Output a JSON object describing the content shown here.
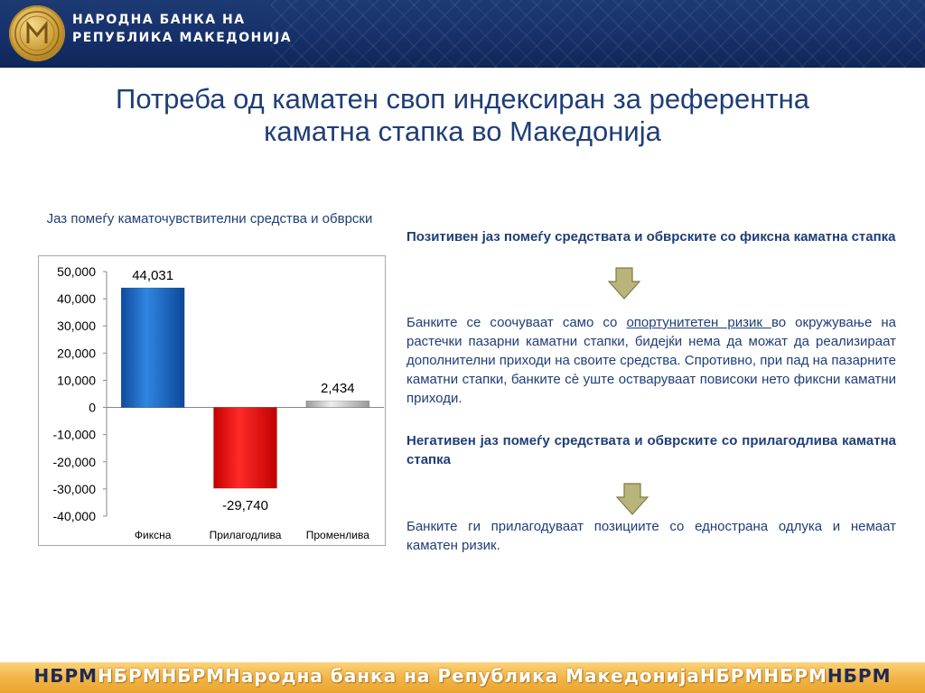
{
  "header": {
    "bank_name_line1": "НАРОДНА БАНКА НА",
    "bank_name_line2": "РЕПУБЛИКА МАКЕДОНИЈА",
    "logo_icon": "nbrm-seal-icon"
  },
  "title": {
    "line1": "Потреба од каматен своп индексиран за референтна",
    "line2": "каматна стапка во Македонија"
  },
  "chart_title": "Јаз помеѓу каматочувствителни средства и обврски",
  "chart_data": {
    "type": "bar",
    "title": "Јаз помеѓу каматочувствителни средства и обврски",
    "categories": [
      "Фиксна",
      "Прилагодлива",
      "Променлива"
    ],
    "values": [
      44031,
      -29740,
      2434
    ],
    "value_labels": [
      "44,031",
      "-29,740",
      "2,434"
    ],
    "colors": [
      "#1565c0",
      "#e31414",
      "#c8c8c8"
    ],
    "ylim": [
      -40000,
      50000
    ],
    "yticks": [
      50000,
      40000,
      30000,
      20000,
      10000,
      0,
      -10000,
      -20000,
      -30000,
      -40000
    ],
    "ytick_labels": [
      "50,000",
      "40,000",
      "30,000",
      "20,000",
      "10,000",
      "0",
      "-10,000",
      "-20,000",
      "-30,000",
      "-40,000"
    ],
    "xlabel": "",
    "ylabel": "",
    "grid": false,
    "legend": "none"
  },
  "right": {
    "heading1": "Позитивен јаз помеѓу средствата и обврските со фиксна каматна стапка",
    "para1_before": "Банките се соочуваат само со ",
    "para1_link": "опортунитетен ризик ",
    "para1_after": "во окружување на растечки пазарни каматни стапки, бидејќи нема да можат да реализираат дополнителни приходи на своите средства. Спротивно, при пад на пазарните каматни стапки, банките сè уште остваруваат повисоки нето фиксни каматни приходи.",
    "heading2": "Негативен јаз помеѓу средствата и обврските со прилагодлива каматна стапка",
    "para2": "Банките ги прилагодуваат позициите со еднострана одлука и немаат каматен ризик.",
    "arrow_icon": "down-arrow-icon",
    "arrow_color": "#b9b57a"
  },
  "footer": {
    "prefix": "НБРМ",
    "repeat1": "НБРМНБРМ",
    "center": "Народна банка на Република Македонија",
    "repeat2": "НБРМНБРМ",
    "suffix": "НБРМ"
  },
  "colors": {
    "header_blue": "#16306a",
    "title_blue": "#1f3e78",
    "footer_gold": "#f2b547"
  }
}
